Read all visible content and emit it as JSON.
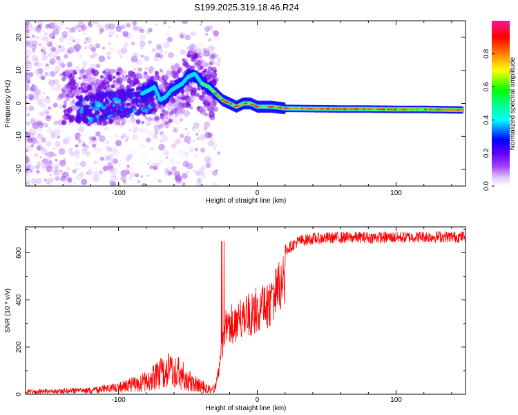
{
  "title": "S199.2025.319.18.46.R24",
  "chart_data": [
    {
      "type": "heatmap",
      "xlabel": "Height of straight line (km)",
      "ylabel": "Frequency (Hz)",
      "xlim": [
        -167,
        150
      ],
      "ylim": [
        -25,
        25
      ],
      "x_ticks": [
        -100,
        0,
        100
      ],
      "y_ticks": [
        -20,
        -10,
        0,
        10,
        20
      ],
      "colorbar": {
        "label": "Normalized spectral amplitude",
        "range": [
          0,
          1
        ],
        "ticks": [
          0.0,
          0.2,
          0.4,
          0.6,
          0.8
        ],
        "colors": [
          "#e6c8ff",
          "#8000ff",
          "#0000ff",
          "#00ffff",
          "#00ff00",
          "#ffff00",
          "#ff8000",
          "#ff0000",
          "#ff1493"
        ]
      },
      "ridge_peak_frequency": {
        "x": [
          -83,
          -78,
          -74,
          -70,
          -66,
          -62,
          -58,
          -54,
          -50,
          -45,
          -40,
          -35,
          -30,
          -25,
          -20,
          -15,
          -10,
          -5,
          0,
          5,
          10,
          20,
          40,
          60,
          80,
          100,
          120,
          148
        ],
        "y": [
          3,
          4,
          5,
          1,
          2,
          4,
          5,
          6,
          8,
          9,
          6,
          5,
          3,
          1,
          0,
          -1,
          0,
          0,
          -1,
          -1,
          -1,
          -1.5,
          -1.6,
          -1.7,
          -1.7,
          -1.8,
          -1.8,
          -2.0
        ]
      }
    },
    {
      "type": "line",
      "xlabel": "Height of straight line (km)",
      "ylabel": "SNR (10 * v/v)",
      "xlim": [
        -167,
        150
      ],
      "ylim": [
        0,
        710
      ],
      "x_ticks": [
        -100,
        0,
        100
      ],
      "y_ticks": [
        0,
        200,
        400,
        600
      ],
      "series": [
        {
          "color": "#ff0000",
          "envelope_x": [
            -167,
            -120,
            -100,
            -80,
            -70,
            -65,
            -60,
            -55,
            -50,
            -45,
            -40,
            -35,
            -30,
            -27,
            -25,
            -23,
            -20,
            -15,
            -10,
            -5,
            0,
            5,
            10,
            15,
            20,
            30,
            40,
            60,
            80,
            100,
            120,
            150
          ],
          "envelope_y": [
            20,
            30,
            50,
            100,
            150,
            180,
            170,
            150,
            110,
            80,
            60,
            40,
            50,
            150,
            300,
            360,
            380,
            400,
            420,
            440,
            460,
            470,
            500,
            560,
            610,
            650,
            660,
            665,
            665,
            665,
            668,
            668
          ]
        }
      ]
    }
  ]
}
